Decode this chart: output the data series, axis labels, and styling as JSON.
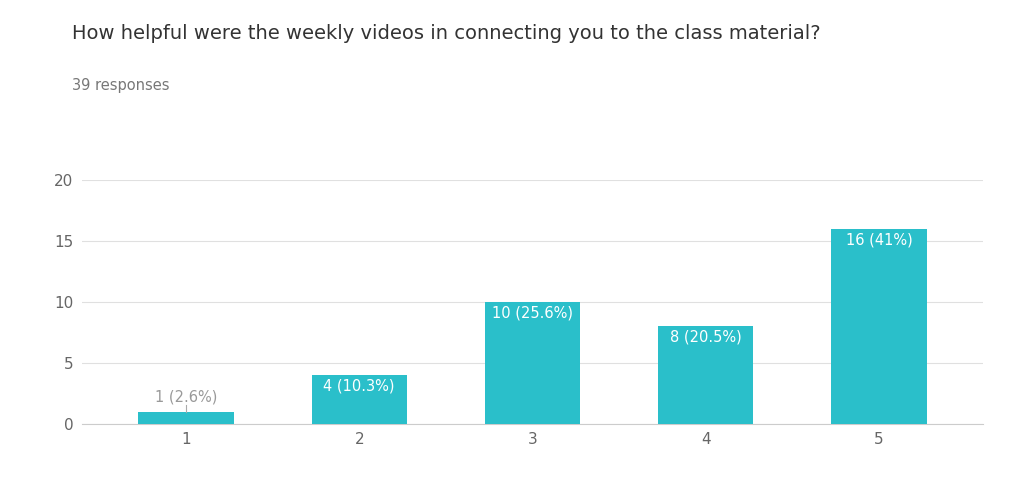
{
  "title": "How helpful were the weekly videos in connecting you to the class material?",
  "subtitle": "39 responses",
  "categories": [
    1,
    2,
    3,
    4,
    5
  ],
  "values": [
    1,
    4,
    10,
    8,
    16
  ],
  "labels": [
    "1 (2.6%)",
    "4 (10.3%)",
    "10 (25.6%)",
    "8 (20.5%)",
    "16 (41%)"
  ],
  "bar_color": "#2ABFCA",
  "background_color": "#ffffff",
  "label_color_inside": "#ffffff",
  "label_color_outside": "#999999",
  "ylim": [
    0,
    20
  ],
  "yticks": [
    0,
    5,
    10,
    15,
    20
  ],
  "title_fontsize": 14,
  "subtitle_fontsize": 10.5,
  "tick_fontsize": 11,
  "label_fontsize": 10.5,
  "grid_color": "#e0e0e0",
  "axis_color": "#cccccc"
}
